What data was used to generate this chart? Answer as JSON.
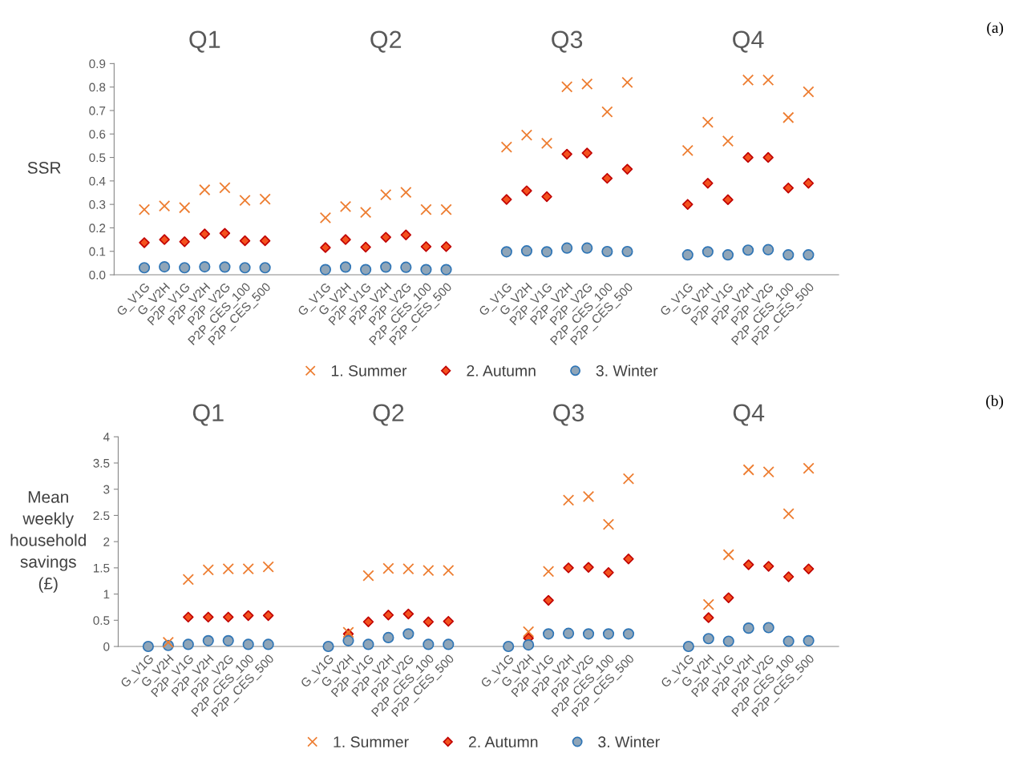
{
  "chart_data": [
    {
      "type": "scatter",
      "ylabel": "SSR",
      "annotations": [
        "Q1",
        "Q2",
        "Q3",
        "Q4",
        "(a)"
      ],
      "categories": [
        null,
        "G_V1G",
        "G_V2H",
        "P2P_V1G",
        "P2P_V2H",
        "P2P_V2G",
        "P2P_CES_100",
        "P2P_CES_500",
        null,
        null,
        "G_V1G",
        "G_V2H",
        "P2P_V1G",
        "P2P_V2H",
        "P2P_V2G",
        "P2P_CES_100",
        "P2P_CES_500",
        null,
        null,
        "G_V1G",
        "G_V2H",
        "P2P_V1G",
        "P2P_V2H",
        "P2P_V2G",
        "P2P_CES_100",
        "P2P_CES_500",
        null,
        null,
        "G_V1G",
        "G_V2H",
        "P2P_V1G",
        "P2P_V2H",
        "P2P_V2G",
        "P2P_CES_100",
        "P2P_CES_500",
        null
      ],
      "series": [
        {
          "name": "1. Summer",
          "color": "#ed7d31",
          "marker": "cross",
          "values": [
            null,
            0.278,
            0.293,
            0.286,
            0.362,
            0.371,
            0.317,
            0.322,
            null,
            null,
            0.243,
            0.291,
            0.266,
            0.341,
            0.351,
            0.278,
            0.278,
            null,
            null,
            0.544,
            0.595,
            0.56,
            0.801,
            0.813,
            0.694,
            0.82,
            null,
            null,
            0.53,
            0.65,
            0.57,
            0.83,
            0.83,
            0.67,
            0.78,
            null
          ]
        },
        {
          "name": "2. Autumn",
          "color": "#f4511e",
          "marker": "diamond",
          "values": [
            null,
            0.137,
            0.15,
            0.141,
            0.174,
            0.177,
            0.145,
            0.145,
            null,
            null,
            0.116,
            0.15,
            0.118,
            0.16,
            0.17,
            0.12,
            0.12,
            null,
            null,
            0.321,
            0.358,
            0.333,
            0.514,
            0.519,
            0.411,
            0.45,
            null,
            null,
            0.3,
            0.39,
            0.32,
            0.5,
            0.5,
            0.37,
            0.39,
            null
          ]
        },
        {
          "name": "3. Winter",
          "color": "#8fa5b8",
          "marker": "circle",
          "values": [
            null,
            0.03,
            0.034,
            0.03,
            0.034,
            0.033,
            0.03,
            0.03,
            null,
            null,
            0.022,
            0.033,
            0.022,
            0.033,
            0.032,
            0.022,
            0.022,
            null,
            null,
            0.098,
            0.102,
            0.098,
            0.114,
            0.114,
            0.099,
            0.099,
            null,
            null,
            0.085,
            0.098,
            0.085,
            0.105,
            0.107,
            0.085,
            0.085,
            null
          ]
        }
      ],
      "ylim": [
        0,
        0.9
      ],
      "yticks": [
        {
          "value": 0,
          "label": "0.0"
        },
        {
          "value": 0.1,
          "label": "0.1"
        },
        {
          "value": 0.2,
          "label": "0.2"
        },
        {
          "value": 0.3,
          "label": "0.3"
        },
        {
          "value": 0.4,
          "label": "0.4"
        },
        {
          "value": 0.5,
          "label": "0.5"
        },
        {
          "value": 0.6,
          "label": "0.6"
        },
        {
          "value": 0.7,
          "label": "0.7"
        },
        {
          "value": 0.8,
          "label": "0.8"
        },
        {
          "value": 0.9,
          "label": "0.9"
        }
      ],
      "grid": false,
      "legend": "bottom"
    },
    {
      "type": "scatter",
      "ylabel": "Mean\nweekly\nhousehold\nsavings\n(£)",
      "annotations": [
        "Q1",
        "Q2",
        "Q3",
        "Q4",
        "(b)"
      ],
      "categories": [
        null,
        "G_V1G",
        "G_V2H",
        "P2P_V1G",
        "P2P_V2H",
        "P2P_V2G",
        "P2P_CES_100",
        "P2P_CES_500",
        null,
        null,
        "G_V1G",
        "G_V2H",
        "P2P_V1G",
        "P2P_V2H",
        "P2P_V2G",
        "P2P_CES_100",
        "P2P_CES_500",
        null,
        null,
        "G_V1G",
        "G_V2H",
        "P2P_V1G",
        "P2P_V2H",
        "P2P_V2G",
        "P2P_CES_100",
        "P2P_CES_500",
        null,
        null,
        "G_V1G",
        "G_V2H",
        "P2P_V1G",
        "P2P_V2H",
        "P2P_V2G",
        "P2P_CES_100",
        "P2P_CES_500",
        null
      ],
      "series": [
        {
          "name": "1. Summer",
          "color": "#ed7d31",
          "marker": "cross",
          "values": [
            null,
            null,
            0.08,
            1.28,
            1.46,
            1.48,
            1.48,
            1.52,
            null,
            null,
            null,
            0.27,
            1.35,
            1.49,
            1.48,
            1.45,
            1.45,
            null,
            null,
            null,
            0.28,
            1.43,
            2.79,
            2.86,
            2.33,
            3.2,
            null,
            null,
            null,
            0.8,
            1.75,
            3.37,
            3.33,
            2.53,
            3.4,
            null
          ]
        },
        {
          "name": "2. Autumn",
          "color": "#f4511e",
          "marker": "diamond",
          "values": [
            null,
            null,
            null,
            0.56,
            0.56,
            0.56,
            0.59,
            0.59,
            null,
            null,
            null,
            0.24,
            0.47,
            0.6,
            0.62,
            0.47,
            0.48,
            null,
            null,
            null,
            0.16,
            0.88,
            1.5,
            1.51,
            1.41,
            1.67,
            null,
            null,
            null,
            0.55,
            0.93,
            1.56,
            1.53,
            1.33,
            1.48,
            null
          ]
        },
        {
          "name": "3. Winter",
          "color": "#8fa5b8",
          "marker": "circle",
          "values": [
            null,
            0,
            0.02,
            0.04,
            0.11,
            0.11,
            0.04,
            0.04,
            null,
            null,
            0,
            0.11,
            0.04,
            0.17,
            0.24,
            0.04,
            0.04,
            null,
            null,
            0,
            0.03,
            0.24,
            0.25,
            0.24,
            0.24,
            0.24,
            null,
            null,
            0,
            0.15,
            0.1,
            0.35,
            0.36,
            0.1,
            0.11,
            null
          ]
        }
      ],
      "ylim": [
        0,
        4
      ],
      "yticks": [
        0,
        0.5,
        1,
        1.5,
        2,
        2.5,
        3,
        3.5,
        4
      ],
      "grid": false,
      "legend": "bottom"
    }
  ]
}
